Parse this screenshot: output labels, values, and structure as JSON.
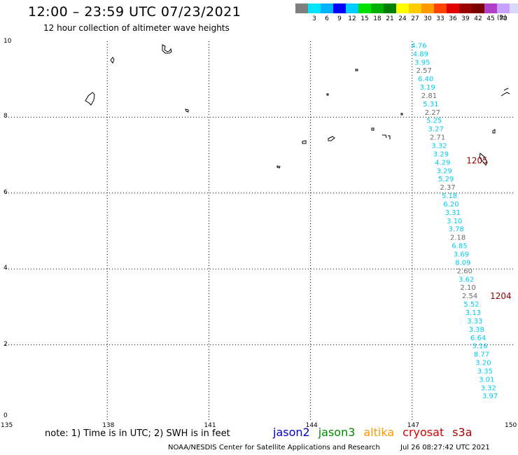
{
  "header": {
    "title": "12:00 – 23:59 UTC 07/23/2021",
    "subtitle": "12 hour collection of altimeter wave heights"
  },
  "colorbar": {
    "swatches": [
      "#7f7f7f",
      "#00e5ff",
      "#00b2ff",
      "#0000ff",
      "#00ccff",
      "#00e000",
      "#00b000",
      "#008000",
      "#ffff00",
      "#ffcc00",
      "#ff9900",
      "#ff4400",
      "#e00000",
      "#9b0000",
      "#7a0000",
      "#b040c8",
      "#c8a0ff",
      "#d8d8ff",
      "#000000"
    ],
    "labels": [
      "",
      "3",
      "6",
      "9",
      "12",
      "15",
      "18",
      "21",
      "24",
      "27",
      "30",
      "33",
      "36",
      "39",
      "42",
      "45",
      "70"
    ],
    "unit": "(ft)"
  },
  "axes": {
    "x_ticks": [
      135,
      138,
      141,
      144,
      147,
      150
    ],
    "y_ticks": [
      0,
      2,
      4,
      6,
      8,
      10
    ],
    "x_range": [
      135,
      150
    ],
    "y_range": [
      0,
      10
    ]
  },
  "colors": {
    "cyan": "#00ccee",
    "gray": "#6a6a6a",
    "pass_label": "#8b0000"
  },
  "swh_track": [
    {
      "lon": 147.2,
      "lat": 9.9,
      "v": "4.76",
      "c": "cyan"
    },
    {
      "lon": 147.25,
      "lat": 9.68,
      "v": "4.89",
      "c": "cyan"
    },
    {
      "lon": 147.3,
      "lat": 9.46,
      "v": "3.95",
      "c": "cyan"
    },
    {
      "lon": 147.35,
      "lat": 9.24,
      "v": "2.57",
      "c": "gray"
    },
    {
      "lon": 147.4,
      "lat": 9.02,
      "v": "6.40",
      "c": "cyan"
    },
    {
      "lon": 147.45,
      "lat": 8.8,
      "v": "3.19",
      "c": "cyan"
    },
    {
      "lon": 147.5,
      "lat": 8.58,
      "v": "2.81",
      "c": "gray"
    },
    {
      "lon": 147.55,
      "lat": 8.36,
      "v": "5.31",
      "c": "cyan"
    },
    {
      "lon": 147.6,
      "lat": 8.14,
      "v": "2.27",
      "c": "gray"
    },
    {
      "lon": 147.65,
      "lat": 7.92,
      "v": "5.25",
      "c": "cyan"
    },
    {
      "lon": 147.7,
      "lat": 7.7,
      "v": "3.27",
      "c": "cyan"
    },
    {
      "lon": 147.75,
      "lat": 7.48,
      "v": "2.71",
      "c": "gray"
    },
    {
      "lon": 147.8,
      "lat": 7.26,
      "v": "3.32",
      "c": "cyan"
    },
    {
      "lon": 147.85,
      "lat": 7.04,
      "v": "3.29",
      "c": "cyan"
    },
    {
      "lon": 147.9,
      "lat": 6.82,
      "v": "4.29",
      "c": "cyan"
    },
    {
      "lon": 147.95,
      "lat": 6.6,
      "v": "3.29",
      "c": "cyan"
    },
    {
      "lon": 148.0,
      "lat": 6.38,
      "v": "5.29",
      "c": "cyan"
    },
    {
      "lon": 148.05,
      "lat": 6.16,
      "v": "2.37",
      "c": "gray"
    },
    {
      "lon": 148.1,
      "lat": 5.94,
      "v": "5.18",
      "c": "cyan"
    },
    {
      "lon": 148.15,
      "lat": 5.72,
      "v": "6.20",
      "c": "cyan"
    },
    {
      "lon": 148.2,
      "lat": 5.5,
      "v": "3.31",
      "c": "cyan"
    },
    {
      "lon": 148.25,
      "lat": 5.28,
      "v": "3.10",
      "c": "cyan"
    },
    {
      "lon": 148.3,
      "lat": 5.06,
      "v": "3.78",
      "c": "cyan"
    },
    {
      "lon": 148.35,
      "lat": 4.84,
      "v": "2.18",
      "c": "gray"
    },
    {
      "lon": 148.4,
      "lat": 4.62,
      "v": "6.85",
      "c": "cyan"
    },
    {
      "lon": 148.45,
      "lat": 4.4,
      "v": "3.69",
      "c": "cyan"
    },
    {
      "lon": 148.5,
      "lat": 4.18,
      "v": "8.09",
      "c": "cyan"
    },
    {
      "lon": 148.55,
      "lat": 3.96,
      "v": "2.60",
      "c": "gray"
    },
    {
      "lon": 148.6,
      "lat": 3.74,
      "v": "3.62",
      "c": "cyan"
    },
    {
      "lon": 148.65,
      "lat": 3.52,
      "v": "2.10",
      "c": "gray"
    },
    {
      "lon": 148.7,
      "lat": 3.3,
      "v": "2.54",
      "c": "gray"
    },
    {
      "lon": 148.75,
      "lat": 3.08,
      "v": "5.52",
      "c": "cyan"
    },
    {
      "lon": 148.8,
      "lat": 2.86,
      "v": "3.13",
      "c": "cyan"
    },
    {
      "lon": 148.85,
      "lat": 2.64,
      "v": "3.33",
      "c": "cyan"
    },
    {
      "lon": 148.9,
      "lat": 2.42,
      "v": "3.38",
      "c": "cyan"
    },
    {
      "lon": 148.95,
      "lat": 2.2,
      "v": "6.64",
      "c": "cyan"
    },
    {
      "lon": 149.0,
      "lat": 1.98,
      "v": "3.16",
      "c": "cyan"
    },
    {
      "lon": 149.05,
      "lat": 1.76,
      "v": "8.77",
      "c": "cyan"
    },
    {
      "lon": 149.1,
      "lat": 1.54,
      "v": "3.20",
      "c": "cyan"
    },
    {
      "lon": 149.15,
      "lat": 1.32,
      "v": "3.35",
      "c": "cyan"
    },
    {
      "lon": 149.2,
      "lat": 1.1,
      "v": "3.01",
      "c": "cyan"
    },
    {
      "lon": 149.25,
      "lat": 0.88,
      "v": "3.32",
      "c": "cyan"
    },
    {
      "lon": 149.3,
      "lat": 0.66,
      "v": "3.97",
      "c": "cyan"
    }
  ],
  "pass_labels": [
    {
      "lon": 148.6,
      "lat": 6.85,
      "text": "1205"
    },
    {
      "lon": 149.3,
      "lat": 3.28,
      "text": "1204"
    }
  ],
  "note": "note:  1) Time is in UTC;  2) SWH is in feet",
  "missions": [
    {
      "name": "jason2",
      "color": "#0000cc"
    },
    {
      "name": "jason3",
      "color": "#008800"
    },
    {
      "name": "altika",
      "color": "#ff9900"
    },
    {
      "name": "cryosat",
      "color": "#dd0000"
    },
    {
      "name": "s3a",
      "color": "#aa0000"
    }
  ],
  "footer": {
    "org": "NOAA/NESDIS Center for Satellite Applications and Research",
    "timestamp": "Jul 26 08:27:42 UTC 2021"
  }
}
